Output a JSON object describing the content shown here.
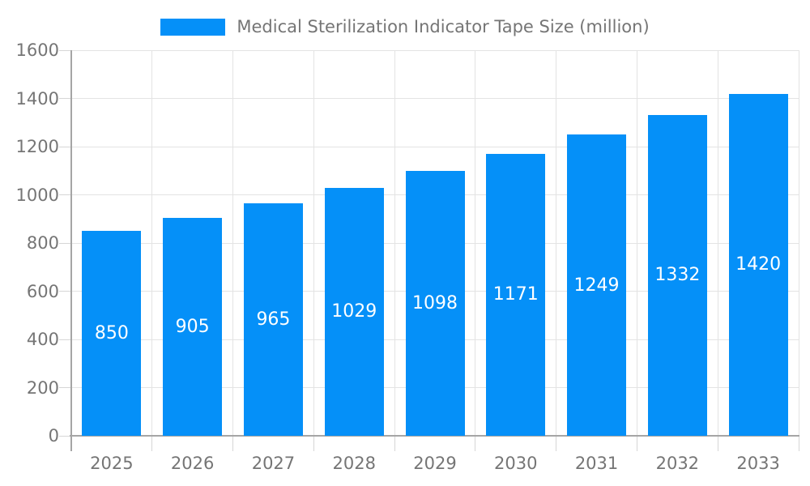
{
  "legend": {
    "label": "Medical Sterilization Indicator Tape Size (million)"
  },
  "chart_data": {
    "type": "bar",
    "title": "Medical Sterilization Indicator Tape Size (million)",
    "categories": [
      "2025",
      "2026",
      "2027",
      "2028",
      "2029",
      "2030",
      "2031",
      "2032",
      "2033"
    ],
    "values": [
      850,
      905,
      965,
      1029,
      1098,
      1171,
      1249,
      1332,
      1420
    ],
    "series": [
      {
        "name": "Medical Sterilization Indicator Tape Size (million)",
        "values": [
          850,
          905,
          965,
          1029,
          1098,
          1171,
          1249,
          1332,
          1420
        ]
      }
    ],
    "xlabel": "",
    "ylabel": "",
    "ylim": [
      0,
      1600
    ],
    "y_ticks": [
      0,
      200,
      400,
      600,
      800,
      1000,
      1200,
      1400,
      1600
    ],
    "grid": true,
    "legend_position": "top",
    "bar_label_position": "inside-middle",
    "colors": {
      "bar": "#0590f8",
      "bar_label": "#ffffff",
      "axis_line": "#a5a5a5",
      "gridline": "#e3e3e3",
      "tick": "#d6d6d6",
      "text": "#757575",
      "background": "#ffffff"
    }
  }
}
